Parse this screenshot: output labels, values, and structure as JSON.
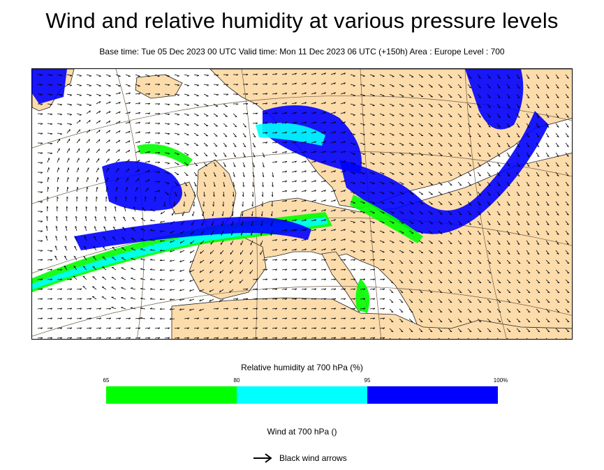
{
  "title": "Wind and relative humidity at various pressure levels",
  "subtitle": "Base time: Tue 05 Dec 2023 00 UTC Valid time: Mon 11 Dec 2023 06 UTC (+150h) Area : Europe Level : 700",
  "map": {
    "land_color": "#fddcac",
    "sea_color": "#ffffff",
    "arrow_color": "#000000",
    "humidity_colors": [
      "#00ff00",
      "#00ffff",
      "#0000ff"
    ]
  },
  "legend": {
    "title": "Relative humidity at 700 hPa (%)",
    "ticks": [
      "65",
      "80",
      "95",
      "100%"
    ],
    "bands": [
      {
        "from": 65,
        "to": 80,
        "color": "#00ff00"
      },
      {
        "from": 80,
        "to": 95,
        "color": "#00ffff"
      },
      {
        "from": 95,
        "to": 100,
        "color": "#0000ff"
      }
    ]
  },
  "wind_legend": {
    "title": "Wind at 700 hPa ()",
    "arrow_label": "Black wind arrows",
    "arrow_icon": "arrow-right-icon"
  }
}
